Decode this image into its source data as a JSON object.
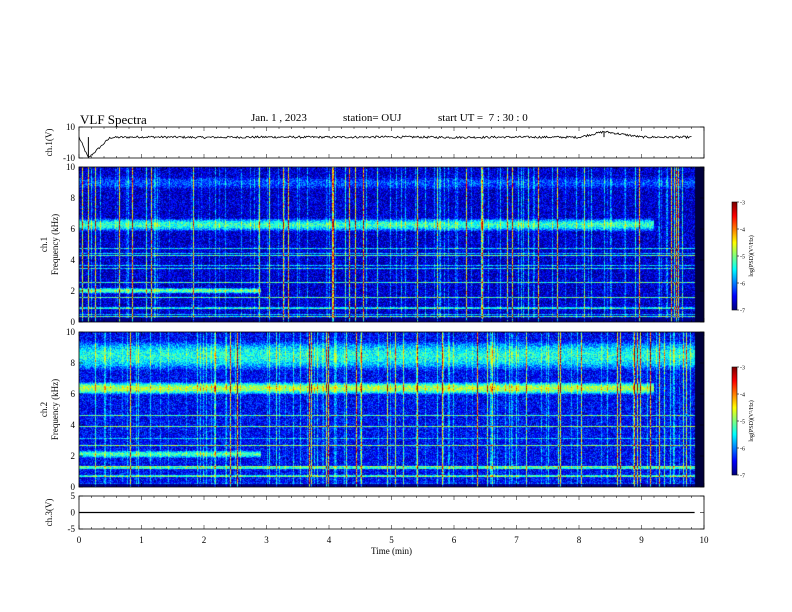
{
  "header": {
    "title": "VLF Spectra",
    "date": "Jan. 1 , 2023",
    "station": "station= OUJ",
    "start_ut": "start UT =  7 : 30 : 0"
  },
  "chart_data": [
    {
      "type": "line",
      "name": "ch1-voltage",
      "ylabel": "ch.1(V)",
      "ylim": [
        -10,
        10
      ],
      "y_ticks": [
        10,
        -10
      ],
      "xlim": [
        0,
        10
      ],
      "x": [
        0,
        0.15,
        0.5,
        1,
        2,
        3,
        4,
        5,
        6,
        7,
        8,
        8.4,
        9,
        9.8
      ],
      "y": [
        3.5,
        -10,
        3.2,
        3.6,
        3.3,
        3.5,
        3.4,
        3.6,
        3.3,
        3.5,
        3.4,
        7,
        3.5,
        3.4
      ],
      "color": "#000000"
    },
    {
      "type": "heatmap",
      "name": "ch1-spectrogram",
      "ylabel": "ch.1\nFrequency (kHz)",
      "ylim": [
        0,
        10
      ],
      "y_ticks": [
        0,
        2,
        4,
        6,
        8,
        10
      ],
      "xlim": [
        0,
        10
      ],
      "data_xmax": 9.85,
      "background_level": -6.7,
      "bands": [
        {
          "f0": 5.7,
          "f1": 6.9,
          "t0": 0,
          "t1": 9.2,
          "level": -5.3
        },
        {
          "f0": 1.8,
          "f1": 2.3,
          "t0": 0,
          "t1": 2.9,
          "level": -5.1
        },
        {
          "f0": 8.0,
          "f1": 10.0,
          "t0": 0,
          "t1": 9.85,
          "level": -6.2
        }
      ],
      "colorbar": {
        "label": "log(PSD)(V²/Hz)",
        "range": [
          -7,
          -3
        ],
        "ticks": [
          -3,
          -4,
          -5,
          -6,
          -7
        ]
      }
    },
    {
      "type": "heatmap",
      "name": "ch2-spectrogram",
      "ylabel": "ch.2\nFrequency (kHz)",
      "ylim": [
        0,
        10
      ],
      "y_ticks": [
        0,
        2,
        4,
        6,
        8,
        10
      ],
      "xlim": [
        0,
        10
      ],
      "data_xmax": 9.85,
      "background_level": -6.5,
      "bands": [
        {
          "f0": 5.9,
          "f1": 6.9,
          "t0": 0,
          "t1": 9.2,
          "level": -4.8
        },
        {
          "f0": 7.0,
          "f1": 10.0,
          "t0": 0,
          "t1": 9.85,
          "level": -5.4
        },
        {
          "f0": 1.8,
          "f1": 2.5,
          "t0": 0,
          "t1": 2.9,
          "level": -5.2
        }
      ],
      "colorbar": {
        "label": "log(PSD)(V²/Hz)",
        "range": [
          -7,
          -3
        ],
        "ticks": [
          -3,
          -4,
          -5,
          -6,
          -7
        ]
      }
    },
    {
      "type": "line",
      "name": "ch3-voltage",
      "ylabel": "ch.3(V)",
      "ylim": [
        -5,
        5
      ],
      "y_ticks": [
        5,
        0,
        -5
      ],
      "xlim": [
        0,
        10
      ],
      "x": [
        0,
        9.85
      ],
      "y": [
        0,
        0
      ],
      "color": "#000000"
    }
  ],
  "x_axis": {
    "label": "Time (min)",
    "ticks": [
      0,
      1,
      2,
      3,
      4,
      5,
      6,
      7,
      8,
      9,
      10
    ]
  }
}
